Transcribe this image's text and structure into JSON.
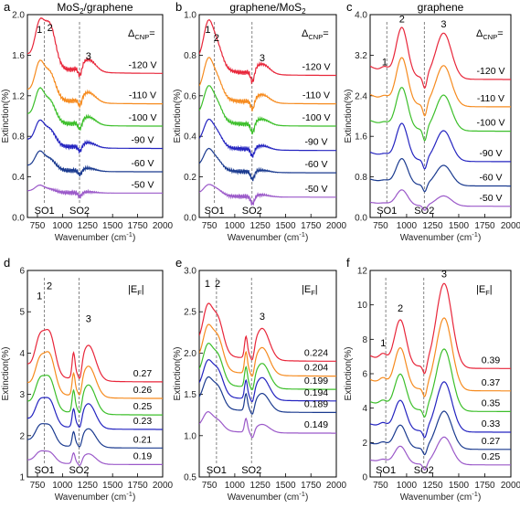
{
  "colors": [
    "#e8263a",
    "#f68b1f",
    "#3cbf2a",
    "#2424c0",
    "#1a3a8f",
    "#9b59c9"
  ],
  "chart_data": [
    {
      "id": "a",
      "letter": "a",
      "type": "line",
      "title": "MoS2/graphene",
      "title_main": "MoS",
      "title_sub": "2",
      "title_rest": "/graphene",
      "xlabel": "Wavenumber (cm",
      "xlabel_sup": "-1",
      "xlabel_end": ")",
      "ylabel": "Extinction(%)",
      "xlim": [
        650,
        2000
      ],
      "ylim": [
        0,
        2.0
      ],
      "xticks": [
        "750",
        "1000",
        "1250",
        "1500",
        "1750",
        "2000"
      ],
      "xtick_values": [
        750,
        1000,
        1250,
        1500,
        1750,
        2000
      ],
      "yticks": [
        "0.0",
        "0.4",
        "0.8",
        "1.2",
        "1.6",
        "2.0"
      ],
      "ytick_values": [
        0,
        0.4,
        0.8,
        1.2,
        1.6,
        2.0
      ],
      "legend_title": "Δ",
      "legend_sub": "CNP",
      "legend_end": "=",
      "vlines": [
        {
          "x": 820,
          "label": "SO1"
        },
        {
          "x": 1170,
          "label": "SO2"
        }
      ],
      "peaks": [
        {
          "label": "1",
          "x": 770,
          "y": 1.82
        },
        {
          "label": "2",
          "x": 875,
          "y": 1.84
        },
        {
          "label": "3",
          "x": 1260,
          "y": 1.56
        }
      ],
      "series": [
        {
          "name": "-120 V",
          "baseline": 1.42,
          "a1": 0.35,
          "a2": 0.4,
          "a3": 0.12,
          "dip": 0.1
        },
        {
          "name": "-110 V",
          "baseline": 1.12,
          "a1": 0.3,
          "a2": 0.25,
          "a3": 0.1,
          "dip": 0.08
        },
        {
          "name": "-100 V",
          "baseline": 0.9,
          "a1": 0.27,
          "a2": 0.2,
          "a3": 0.08,
          "dip": 0.08
        },
        {
          "name": "-90 V",
          "baseline": 0.68,
          "a1": 0.2,
          "a2": 0.15,
          "a3": 0.05,
          "dip": 0.06
        },
        {
          "name": "-60 V",
          "baseline": 0.45,
          "a1": 0.15,
          "a2": 0.1,
          "a3": 0.03,
          "dip": 0.05
        },
        {
          "name": "-50 V",
          "baseline": 0.24,
          "a1": 0.06,
          "a2": 0.03,
          "a3": 0.01,
          "dip": 0.04
        }
      ]
    },
    {
      "id": "b",
      "letter": "b",
      "type": "line",
      "title": "graphene/MoS2",
      "title_main": "graphene/MoS",
      "title_sub": "2",
      "title_rest": "",
      "xlabel": "Wavenumber (cm",
      "xlabel_sup": "-1",
      "xlabel_end": ")",
      "ylabel": "Extinction(%)",
      "xlim": [
        650,
        2000
      ],
      "ylim": [
        0,
        1.0
      ],
      "xticks": [
        "750",
        "1000",
        "1250",
        "1500",
        "1750",
        "2000"
      ],
      "xtick_values": [
        750,
        1000,
        1250,
        1500,
        1750,
        2000
      ],
      "yticks": [
        "0.0",
        "0.2",
        "0.4",
        "0.6",
        "0.8",
        "1.0"
      ],
      "ytick_values": [
        0,
        0.2,
        0.4,
        0.6,
        0.8,
        1.0
      ],
      "legend_title": "Δ",
      "legend_sub": "CNP",
      "legend_end": "=",
      "vlines": [
        {
          "x": 800,
          "label": "SO1"
        },
        {
          "x": 1170,
          "label": "SO2"
        }
      ],
      "peaks": [
        {
          "label": "1",
          "x": 735,
          "y": 0.91
        },
        {
          "label": "2",
          "x": 820,
          "y": 0.87
        },
        {
          "label": "3",
          "x": 1270,
          "y": 0.77
        }
      ],
      "series": [
        {
          "name": "-120 V",
          "baseline": 0.7,
          "a1": 0.18,
          "a2": 0.12,
          "a3": 0.05,
          "dip": 0.06
        },
        {
          "name": "-110 V",
          "baseline": 0.56,
          "a1": 0.15,
          "a2": 0.1,
          "a3": 0.04,
          "dip": 0.05
        },
        {
          "name": "-100 V",
          "baseline": 0.45,
          "a1": 0.13,
          "a2": 0.09,
          "a3": 0.03,
          "dip": 0.05
        },
        {
          "name": "-90 V",
          "baseline": 0.33,
          "a1": 0.1,
          "a2": 0.07,
          "a3": 0.02,
          "dip": 0.04
        },
        {
          "name": "-60 V",
          "baseline": 0.22,
          "a1": 0.08,
          "a2": 0.05,
          "a3": 0.01,
          "dip": 0.04
        },
        {
          "name": "-50 V",
          "baseline": 0.1,
          "a1": 0.04,
          "a2": 0.03,
          "a3": 0.01,
          "dip": 0.04
        }
      ]
    },
    {
      "id": "c",
      "letter": "c",
      "type": "line",
      "title": "graphene",
      "title_main": "graphene",
      "title_sub": "",
      "title_rest": "",
      "xlabel": "Wavenumber (cm",
      "xlabel_sup": "-1",
      "xlabel_end": ")",
      "ylabel": "Extinction(%)",
      "xlim": [
        650,
        2000
      ],
      "ylim": [
        0,
        4.0
      ],
      "xticks": [
        "750",
        "1000",
        "1250",
        "1500",
        "1750",
        "2000"
      ],
      "xtick_values": [
        750,
        1000,
        1250,
        1500,
        1750,
        2000
      ],
      "yticks": [
        "0.0",
        "0.8",
        "1.6",
        "2.4",
        "3.2",
        "4.0"
      ],
      "ytick_values": [
        0,
        0.8,
        1.6,
        2.4,
        3.2,
        4.0
      ],
      "legend_title": "Δ",
      "legend_sub": "CNP",
      "legend_end": "=",
      "vlines": [
        {
          "x": 810,
          "label": "SO1"
        },
        {
          "x": 1170,
          "label": "SO2"
        }
      ],
      "peaks": [
        {
          "label": "1",
          "x": 790,
          "y": 3.0
        },
        {
          "label": "2",
          "x": 955,
          "y": 3.85
        },
        {
          "label": "3",
          "x": 1355,
          "y": 3.75
        }
      ],
      "series": [
        {
          "name": "-120 V",
          "baseline": 2.72,
          "a1": 0.1,
          "a2": 0.95,
          "a3": 0.9,
          "dip": 0.25
        },
        {
          "name": "-110 V",
          "baseline": 2.18,
          "a1": 0.08,
          "a2": 0.9,
          "a3": 0.8,
          "dip": 0.25
        },
        {
          "name": "-100 V",
          "baseline": 1.7,
          "a1": 0.06,
          "a2": 0.8,
          "a3": 0.7,
          "dip": 0.25
        },
        {
          "name": "-90 V",
          "baseline": 1.1,
          "a1": 0.05,
          "a2": 0.7,
          "a3": 0.6,
          "dip": 0.2
        },
        {
          "name": "-60 V",
          "baseline": 0.62,
          "a1": 0.04,
          "a2": 0.5,
          "a3": 0.4,
          "dip": 0.15
        },
        {
          "name": "-50 V",
          "baseline": 0.22,
          "a1": 0.02,
          "a2": 0.3,
          "a3": 0.2,
          "dip": 0.1
        }
      ]
    },
    {
      "id": "d",
      "letter": "d",
      "type": "line",
      "title": "",
      "title_main": "",
      "title_sub": "",
      "title_rest": "",
      "xlabel": "Wavenumber (cm",
      "xlabel_sup": "-1",
      "xlabel_end": ")",
      "ylabel": "Extinction(%)",
      "xlim": [
        650,
        2000
      ],
      "ylim": [
        1,
        6
      ],
      "xticks": [
        "750",
        "1000",
        "1250",
        "1500",
        "1750",
        "2000"
      ],
      "xtick_values": [
        750,
        1000,
        1250,
        1500,
        1750,
        2000
      ],
      "yticks": [
        "1",
        "2",
        "3",
        "4",
        "5",
        "6"
      ],
      "ytick_values": [
        1,
        2,
        3,
        4,
        5,
        6
      ],
      "legend_title": "|E",
      "legend_sub": "F",
      "legend_end": "|",
      "vlines": [
        {
          "x": 820,
          "label": "SO1"
        },
        {
          "x": 1165,
          "label": "SO2"
        }
      ],
      "peaks": [
        {
          "label": "1",
          "x": 770,
          "y": 5.3
        },
        {
          "label": "2",
          "x": 870,
          "y": 5.55
        },
        {
          "label": "3",
          "x": 1260,
          "y": 4.75
        }
      ],
      "series": [
        {
          "name": "0.27",
          "baseline": 3.3,
          "a1": 0.7,
          "a2": 1.0,
          "a3": 0.85,
          "dip": 0.35
        },
        {
          "name": "0.26",
          "baseline": 2.9,
          "a1": 0.6,
          "a2": 0.9,
          "a3": 0.75,
          "dip": 0.3
        },
        {
          "name": "0.25",
          "baseline": 2.5,
          "a1": 0.55,
          "a2": 0.75,
          "a3": 0.7,
          "dip": 0.3
        },
        {
          "name": "0.23",
          "baseline": 2.15,
          "a1": 0.45,
          "a2": 0.6,
          "a3": 0.6,
          "dip": 0.25
        },
        {
          "name": "0.21",
          "baseline": 1.7,
          "a1": 0.35,
          "a2": 0.45,
          "a3": 0.45,
          "dip": 0.2
        },
        {
          "name": "0.19",
          "baseline": 1.3,
          "a1": 0.2,
          "a2": 0.25,
          "a3": 0.25,
          "dip": 0.15
        }
      ]
    },
    {
      "id": "e",
      "letter": "e",
      "type": "line",
      "title": "",
      "title_main": "",
      "title_sub": "",
      "title_rest": "",
      "xlabel": "Wavenumber (cm",
      "xlabel_sup": "-1",
      "xlabel_end": ")",
      "ylabel": "Extinction(%)",
      "xlim": [
        650,
        2000
      ],
      "ylim": [
        0.5,
        3.0
      ],
      "xticks": [
        "750",
        "1000",
        "1250",
        "1500",
        "1750",
        "2000"
      ],
      "xtick_values": [
        750,
        1000,
        1250,
        1500,
        1750,
        2000
      ],
      "yticks": [
        "0.5",
        "1.0",
        "1.5",
        "2.0",
        "2.5",
        "3.0"
      ],
      "ytick_values": [
        0.5,
        1.0,
        1.5,
        2.0,
        2.5,
        3.0
      ],
      "legend_title": "|E",
      "legend_sub": "F",
      "legend_end": "|",
      "vlines": [
        {
          "x": 820,
          "label": "SO1"
        },
        {
          "x": 1165,
          "label": "SO2"
        }
      ],
      "peaks": [
        {
          "label": "1",
          "x": 730,
          "y": 2.8
        },
        {
          "label": "2",
          "x": 830,
          "y": 2.8
        },
        {
          "label": "3",
          "x": 1270,
          "y": 2.4
        }
      ],
      "series": [
        {
          "name": "0.224",
          "baseline": 1.9,
          "a1": 0.45,
          "a2": 0.42,
          "a3": 0.38,
          "dip": 0.15
        },
        {
          "name": "0.204",
          "baseline": 1.72,
          "a1": 0.4,
          "a2": 0.38,
          "a3": 0.33,
          "dip": 0.15
        },
        {
          "name": "0.199",
          "baseline": 1.56,
          "a1": 0.36,
          "a2": 0.33,
          "a3": 0.3,
          "dip": 0.14
        },
        {
          "name": "0.194",
          "baseline": 1.42,
          "a1": 0.32,
          "a2": 0.3,
          "a3": 0.27,
          "dip": 0.13
        },
        {
          "name": "0.189",
          "baseline": 1.28,
          "a1": 0.28,
          "a2": 0.25,
          "a3": 0.22,
          "dip": 0.12
        },
        {
          "name": "0.149",
          "baseline": 1.03,
          "a1": 0.18,
          "a2": 0.12,
          "a3": 0.1,
          "dip": 0.1
        }
      ]
    },
    {
      "id": "f",
      "letter": "f",
      "type": "line",
      "title": "",
      "title_main": "",
      "title_sub": "",
      "title_rest": "",
      "xlabel": "Wavenumber (cm",
      "xlabel_sup": "-1",
      "xlabel_end": ")",
      "ylabel": "Extinction(%)",
      "xlim": [
        650,
        2000
      ],
      "ylim": [
        0,
        12
      ],
      "xticks": [
        "750",
        "1000",
        "1250",
        "1500",
        "1750",
        "2000"
      ],
      "xtick_values": [
        750,
        1000,
        1250,
        1500,
        1750,
        2000
      ],
      "yticks": [
        "0",
        "2",
        "4",
        "6",
        "8",
        "10",
        "12"
      ],
      "ytick_values": [
        0,
        2,
        4,
        6,
        8,
        10,
        12
      ],
      "legend_title": "|E",
      "legend_sub": "F",
      "legend_end": "|",
      "vlines": [
        {
          "x": 800,
          "label": "SO1"
        },
        {
          "x": 1165,
          "label": "SO2"
        }
      ],
      "peaks": [
        {
          "label": "1",
          "x": 775,
          "y": 7.6
        },
        {
          "label": "2",
          "x": 940,
          "y": 9.6
        },
        {
          "label": "3",
          "x": 1360,
          "y": 11.6
        }
      ],
      "series": [
        {
          "name": "0.39",
          "baseline": 6.3,
          "a1": 0.4,
          "a2": 2.6,
          "a3": 4.9,
          "dip": 0.6
        },
        {
          "name": "0.37",
          "baseline": 5.0,
          "a1": 0.35,
          "a2": 2.3,
          "a3": 4.2,
          "dip": 0.6
        },
        {
          "name": "0.35",
          "baseline": 3.8,
          "a1": 0.3,
          "a2": 2.0,
          "a3": 3.6,
          "dip": 0.55
        },
        {
          "name": "0.33",
          "baseline": 2.6,
          "a1": 0.25,
          "a2": 1.7,
          "a3": 2.9,
          "dip": 0.5
        },
        {
          "name": "0.27",
          "baseline": 1.6,
          "a1": 0.2,
          "a2": 1.3,
          "a3": 2.2,
          "dip": 0.45
        },
        {
          "name": "0.25",
          "baseline": 0.7,
          "a1": 0.15,
          "a2": 1.0,
          "a3": 1.6,
          "dip": 0.4
        }
      ]
    }
  ]
}
